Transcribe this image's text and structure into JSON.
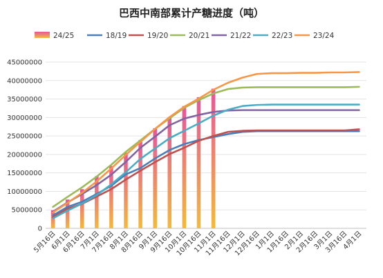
{
  "chart_data": {
    "type": "bar",
    "title": "巴西中南部累计产糖进度（吨）",
    "categories": [
      "5月16日",
      "6月1日",
      "6月16日",
      "7月1日",
      "7月16日",
      "8月1日",
      "8月16日",
      "9月1日",
      "9月16日",
      "10月1日",
      "10月16日",
      "11月1日",
      "11月16日",
      "12月1日",
      "12月16日",
      "1月1日",
      "1月16日",
      "2月1日",
      "2月16日",
      "3月1日",
      "3月16日",
      "4月1日"
    ],
    "ylim": [
      0,
      45000000
    ],
    "yticks": [
      0,
      5000000,
      10000000,
      15000000,
      20000000,
      25000000,
      30000000,
      35000000,
      40000000,
      45000000
    ],
    "ytick_labels": [
      "0",
      "5000000",
      "10000000",
      "15000000",
      "20000000",
      "25000000",
      "30000000",
      "35000000",
      "40000000",
      "45000000"
    ],
    "grid": true,
    "legend_position": "top",
    "bar_series": {
      "name": "24/25",
      "values": [
        4900000,
        7800000,
        10600000,
        14100000,
        16900000,
        20500000,
        23900000,
        27100000,
        30100000,
        33100000,
        35500000,
        37800000
      ]
    },
    "series": [
      {
        "name": "18/19",
        "color": "#4a7ebb",
        "values": [
          3500000,
          5800000,
          7200000,
          9300000,
          11500000,
          14600000,
          16300000,
          18900000,
          21200000,
          22800000,
          23900000,
          24700000,
          25500000,
          26100000,
          26300000,
          26300000,
          26300000,
          26300000,
          26300000,
          26300000,
          26300000,
          26300000
        ]
      },
      {
        "name": "19/20",
        "color": "#c0504d",
        "values": [
          3000000,
          5300000,
          6600000,
          8600000,
          10600000,
          13200000,
          15600000,
          17900000,
          20100000,
          21800000,
          23700000,
          25000000,
          26100000,
          26400000,
          26500000,
          26500000,
          26500000,
          26500000,
          26500000,
          26500000,
          26500000,
          26800000
        ]
      },
      {
        "name": "20/21",
        "color": "#9bbb59",
        "values": [
          5800000,
          8500000,
          11100000,
          14000000,
          17200000,
          20700000,
          23800000,
          26900000,
          29800000,
          32600000,
          34700000,
          36500000,
          37700000,
          38100000,
          38200000,
          38200000,
          38200000,
          38200000,
          38200000,
          38200000,
          38200000,
          38300000
        ]
      },
      {
        "name": "21/22",
        "color": "#8064a2",
        "values": [
          4500000,
          7000000,
          9300000,
          11700000,
          14500000,
          18000000,
          21800000,
          24800000,
          27900000,
          29700000,
          30700000,
          31500000,
          31900000,
          32000000,
          32000000,
          32000000,
          32000000,
          32000000,
          32000000,
          32000000,
          32000000,
          32000000
        ]
      },
      {
        "name": "22/23",
        "color": "#4bacc6",
        "values": [
          2700000,
          4800000,
          6700000,
          9000000,
          11900000,
          15200000,
          18800000,
          21600000,
          24400000,
          26400000,
          28400000,
          30500000,
          32100000,
          33100000,
          33400000,
          33500000,
          33500000,
          33500000,
          33500000,
          33500000,
          33500000,
          33500000
        ]
      },
      {
        "name": "23/24",
        "color": "#f79646",
        "values": [
          4300000,
          6900000,
          9600000,
          12700000,
          16200000,
          19900000,
          23400000,
          26900000,
          30100000,
          32900000,
          35100000,
          37500000,
          39400000,
          40800000,
          41800000,
          42000000,
          42000000,
          42100000,
          42100000,
          42200000,
          42200000,
          42300000
        ]
      }
    ],
    "colors": {
      "bar_top": "#e8559a",
      "bar_bottom": "#f5b93a",
      "grid": "#e3e3e3",
      "axis": "#bfbfbf"
    }
  }
}
